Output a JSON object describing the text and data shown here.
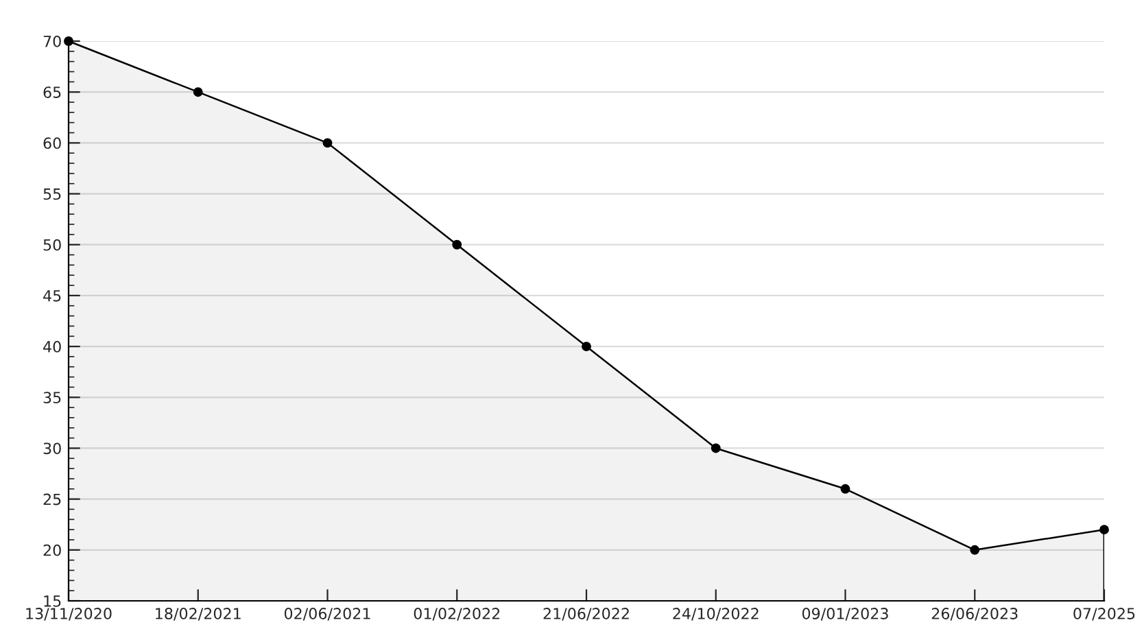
{
  "chart_data": {
    "type": "area",
    "categories": [
      "13/11/2020",
      "18/02/2021",
      "02/06/2021",
      "01/02/2022",
      "21/06/2022",
      "24/10/2022",
      "09/01/2023",
      "26/06/2023",
      "07/2025"
    ],
    "series": [
      {
        "color": "#000000",
        "values": [
          70,
          65,
          60,
          50,
          40,
          30,
          26,
          20,
          22
        ]
      }
    ],
    "ylim": [
      15,
      70
    ],
    "yticks": [
      15,
      20,
      25,
      30,
      35,
      40,
      45,
      50,
      55,
      60,
      65,
      70
    ],
    "grid": "y",
    "marker": "circle",
    "line_style": "solid",
    "legend": false
  }
}
